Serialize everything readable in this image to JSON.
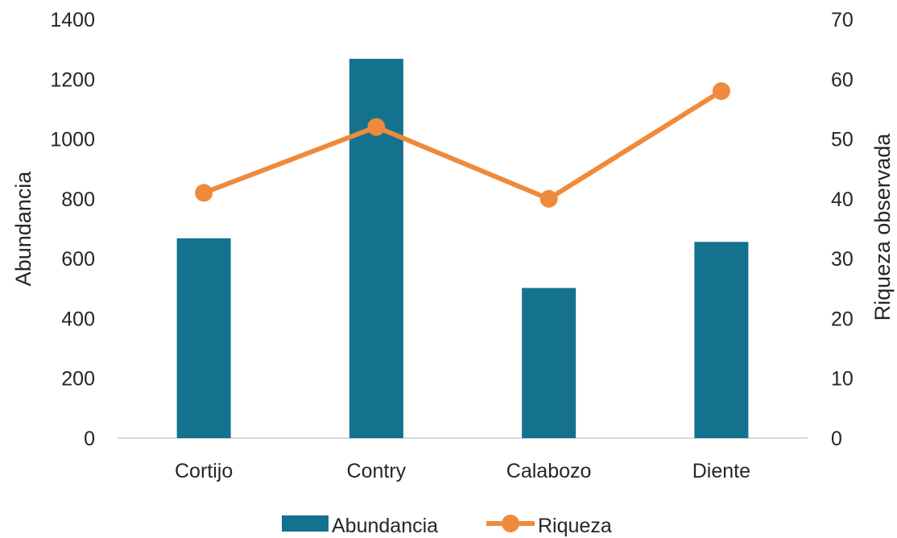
{
  "chart_data": {
    "type": "bar",
    "categories": [
      "Cortijo",
      "Contry",
      "Calabozo",
      "Diente"
    ],
    "series": [
      {
        "name": "Abundancia",
        "type": "bar",
        "axis": "left",
        "values": [
          668,
          1268,
          502,
          656
        ]
      },
      {
        "name": "Riqueza",
        "type": "line",
        "axis": "right",
        "values": [
          41,
          52,
          40,
          58
        ]
      }
    ],
    "ylabel": "Abundancia",
    "y2label": "Riqueza observada",
    "ylim": [
      0,
      1400
    ],
    "y2lim": [
      0,
      70
    ],
    "yticks": [
      "0",
      "200",
      "400",
      "600",
      "800",
      "1000",
      "1200",
      "1400"
    ],
    "y2ticks": [
      "0",
      "10",
      "20",
      "30",
      "40",
      "50",
      "60",
      "70"
    ],
    "grid": false,
    "legend_position": "bottom",
    "colors": {
      "bar": "#15728f",
      "line": "#ef8a3c",
      "axis": "#d9d9d9",
      "text": "#262626"
    }
  }
}
